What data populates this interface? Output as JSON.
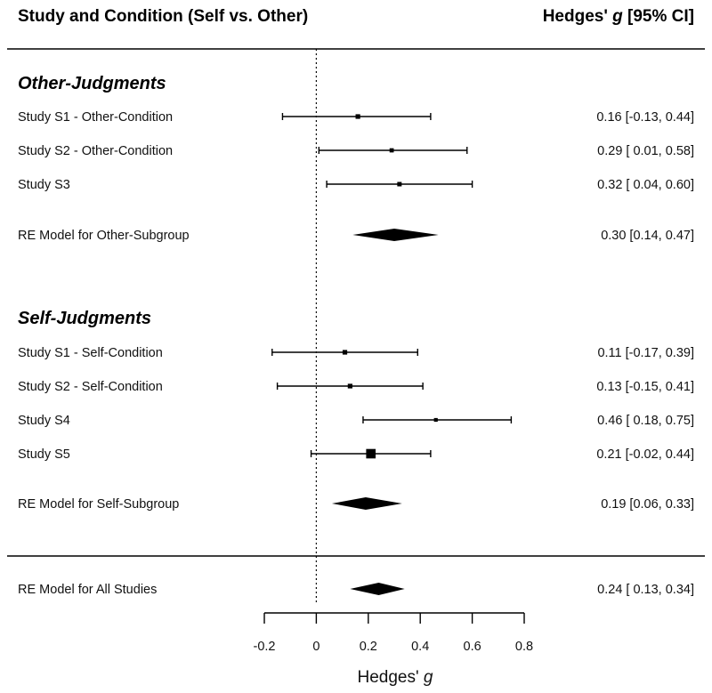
{
  "chart_data": {
    "type": "forest",
    "title": "Study and Condition (Self vs. Other)",
    "effect_header": {
      "prefix": "Hedges' ",
      "symbol": "g",
      "suffix": " [95% CI]"
    },
    "xlabel": {
      "prefix": "Hedges' ",
      "symbol": "g"
    },
    "xlim": [
      -0.2,
      0.8
    ],
    "x_ticks": [
      -0.2,
      0,
      0.2,
      0.4,
      0.6,
      0.8
    ],
    "x_tick_labels": [
      "-0.2",
      "0",
      "0.2",
      "0.4",
      "0.6",
      "0.8"
    ],
    "reference_line": 0,
    "groups": [
      {
        "name": "Other-Judgments",
        "studies": [
          {
            "label": "Study S1 - Other-Condition",
            "estimate": 0.16,
            "lower": -0.13,
            "upper": 0.44,
            "weight": 1,
            "text": "0.16 [-0.13, 0.44]"
          },
          {
            "label": "Study S2 - Other-Condition",
            "estimate": 0.29,
            "lower": 0.01,
            "upper": 0.58,
            "weight": 0.8,
            "text": "0.29 [ 0.01, 0.58]"
          },
          {
            "label": "Study S3",
            "estimate": 0.32,
            "lower": 0.04,
            "upper": 0.6,
            "weight": 0.9,
            "text": "0.32 [ 0.04, 0.60]"
          }
        ],
        "summary": {
          "label": "RE Model for Other-Subgroup",
          "estimate": 0.3,
          "lower": 0.14,
          "upper": 0.47,
          "text": "0.30 [0.14, 0.47]"
        }
      },
      {
        "name": "Self-Judgments",
        "studies": [
          {
            "label": "Study S1 - Self-Condition",
            "estimate": 0.11,
            "lower": -0.17,
            "upper": 0.39,
            "weight": 1,
            "text": "0.11 [-0.17, 0.39]"
          },
          {
            "label": "Study S2 - Self-Condition",
            "estimate": 0.13,
            "lower": -0.15,
            "upper": 0.41,
            "weight": 1,
            "text": "0.13 [-0.15, 0.41]"
          },
          {
            "label": "Study S4",
            "estimate": 0.46,
            "lower": 0.18,
            "upper": 0.75,
            "weight": 0.6,
            "text": "0.46 [ 0.18, 0.75]"
          },
          {
            "label": "Study S5",
            "estimate": 0.21,
            "lower": -0.02,
            "upper": 0.44,
            "weight": 5,
            "text": "0.21 [-0.02, 0.44]"
          }
        ],
        "summary": {
          "label": "RE Model for Self-Subgroup",
          "estimate": 0.19,
          "lower": 0.06,
          "upper": 0.33,
          "text": "0.19 [0.06, 0.33]"
        }
      }
    ],
    "overall": {
      "label": "RE Model for All Studies",
      "estimate": 0.24,
      "lower": 0.13,
      "upper": 0.34,
      "text": "0.24 [ 0.13, 0.34]"
    }
  }
}
